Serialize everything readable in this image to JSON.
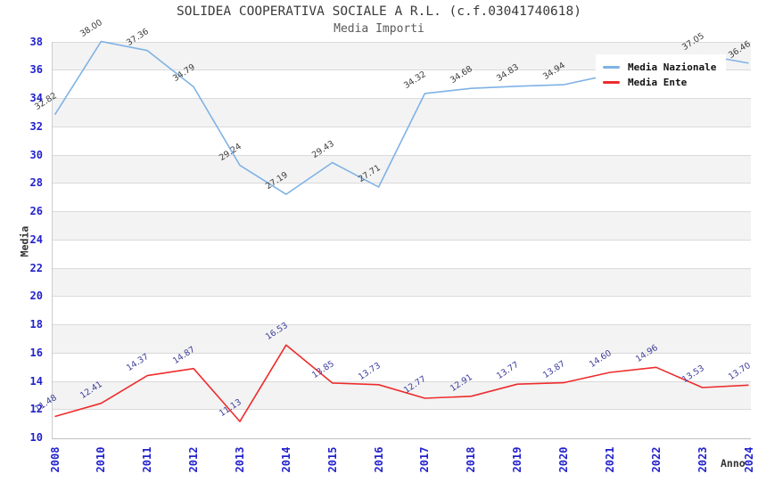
{
  "chart_data": {
    "type": "line",
    "title": "SOLIDEA COOPERATIVA SOCIALE A R.L. (c.f.03041740618)",
    "subtitle": "Media Importi",
    "xlabel": "Anno",
    "ylabel": "Media",
    "ylim": [
      10,
      38
    ],
    "ytick_step": 2,
    "yticks": [
      10,
      12,
      14,
      16,
      18,
      20,
      22,
      24,
      26,
      28,
      30,
      32,
      34,
      36,
      38
    ],
    "grid": "horizontal-gridlines-with-alternating-bands",
    "legend_position": "top-right",
    "categories": [
      "2008",
      "2010",
      "2011",
      "2012",
      "2013",
      "2014",
      "2015",
      "2016",
      "2017",
      "2018",
      "2019",
      "2020",
      "2021",
      "2022",
      "2023",
      "2024"
    ],
    "series": [
      {
        "name": "Media Nazionale",
        "color": "#7fb2e5",
        "label_color": "#3c3c3c",
        "values": [
          32.82,
          38.0,
          37.36,
          34.79,
          29.24,
          27.19,
          29.43,
          27.71,
          34.32,
          34.68,
          34.83,
          34.94,
          null,
          null,
          37.05,
          36.46
        ]
      },
      {
        "name": "Media Ente",
        "color": "#ee2c2c",
        "label_color": "#3b3b9b",
        "values": [
          11.48,
          12.41,
          14.37,
          14.87,
          11.13,
          16.53,
          13.85,
          13.73,
          12.77,
          12.91,
          13.77,
          13.87,
          14.6,
          14.96,
          13.53,
          13.7
        ]
      }
    ],
    "colors": {
      "tick_label": "#2222cc",
      "axis_title": "#333333",
      "band": "#f3f3f3",
      "gridline": "#dadada"
    }
  }
}
